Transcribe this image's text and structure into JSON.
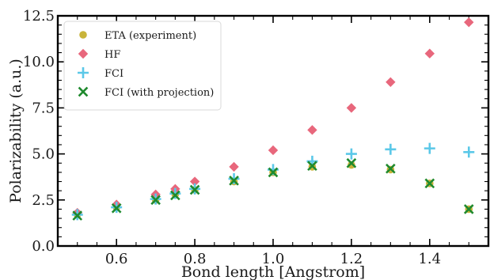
{
  "chart_data": {
    "type": "scatter",
    "xlabel": "Bond length [Angstrom]",
    "ylabel": "Polarizability (a.u.)",
    "xlim": [
      0.45,
      1.55
    ],
    "ylim": [
      0.0,
      12.5
    ],
    "x_ticks": [
      0.6,
      0.8,
      1.0,
      1.2,
      1.4
    ],
    "y_ticks": [
      0.0,
      2.5,
      5.0,
      7.5,
      10.0,
      12.5
    ],
    "x_tick_labels": [
      "0.6",
      "0.8",
      "1.0",
      "1.2",
      "1.4"
    ],
    "y_tick_labels": [
      "0.0",
      "2.5",
      "5.0",
      "7.5",
      "10.0",
      "12.5"
    ],
    "grid": false,
    "legend_position": "top-left",
    "series": [
      {
        "name": "ETA (experiment)",
        "marker": "circle",
        "color": "#c9b43a",
        "points": [
          [
            0.5,
            1.7
          ],
          [
            0.6,
            2.1
          ],
          [
            0.7,
            2.5
          ],
          [
            0.75,
            2.8
          ],
          [
            0.8,
            3.05
          ],
          [
            0.9,
            3.5
          ],
          [
            1.0,
            4.0
          ],
          [
            1.1,
            4.3
          ],
          [
            1.2,
            4.4
          ],
          [
            1.3,
            4.15
          ],
          [
            1.4,
            3.4
          ],
          [
            1.5,
            2.0
          ]
        ]
      },
      {
        "name": "HF",
        "marker": "diamond",
        "color": "#e8677c",
        "points": [
          [
            0.5,
            1.8
          ],
          [
            0.6,
            2.25
          ],
          [
            0.7,
            2.8
          ],
          [
            0.75,
            3.1
          ],
          [
            0.8,
            3.5
          ],
          [
            0.9,
            4.3
          ],
          [
            1.0,
            5.2
          ],
          [
            1.1,
            6.3
          ],
          [
            1.2,
            7.5
          ],
          [
            1.3,
            8.9
          ],
          [
            1.4,
            10.45
          ],
          [
            1.5,
            12.15
          ]
        ]
      },
      {
        "name": "FCI",
        "marker": "plus",
        "color": "#5bc8e8",
        "points": [
          [
            0.5,
            1.7
          ],
          [
            0.6,
            2.1
          ],
          [
            0.7,
            2.55
          ],
          [
            0.75,
            2.85
          ],
          [
            0.8,
            3.1
          ],
          [
            0.9,
            3.65
          ],
          [
            1.0,
            4.15
          ],
          [
            1.1,
            4.6
          ],
          [
            1.2,
            5.0
          ],
          [
            1.3,
            5.25
          ],
          [
            1.4,
            5.3
          ],
          [
            1.5,
            5.1
          ]
        ]
      },
      {
        "name": "FCI (with projection)",
        "marker": "x",
        "color": "#1f8a2e",
        "points": [
          [
            0.5,
            1.65
          ],
          [
            0.6,
            2.05
          ],
          [
            0.7,
            2.5
          ],
          [
            0.75,
            2.75
          ],
          [
            0.8,
            3.05
          ],
          [
            0.9,
            3.55
          ],
          [
            1.0,
            4.0
          ],
          [
            1.1,
            4.35
          ],
          [
            1.2,
            4.5
          ],
          [
            1.3,
            4.2
          ],
          [
            1.4,
            3.4
          ],
          [
            1.5,
            2.0
          ]
        ]
      }
    ]
  }
}
